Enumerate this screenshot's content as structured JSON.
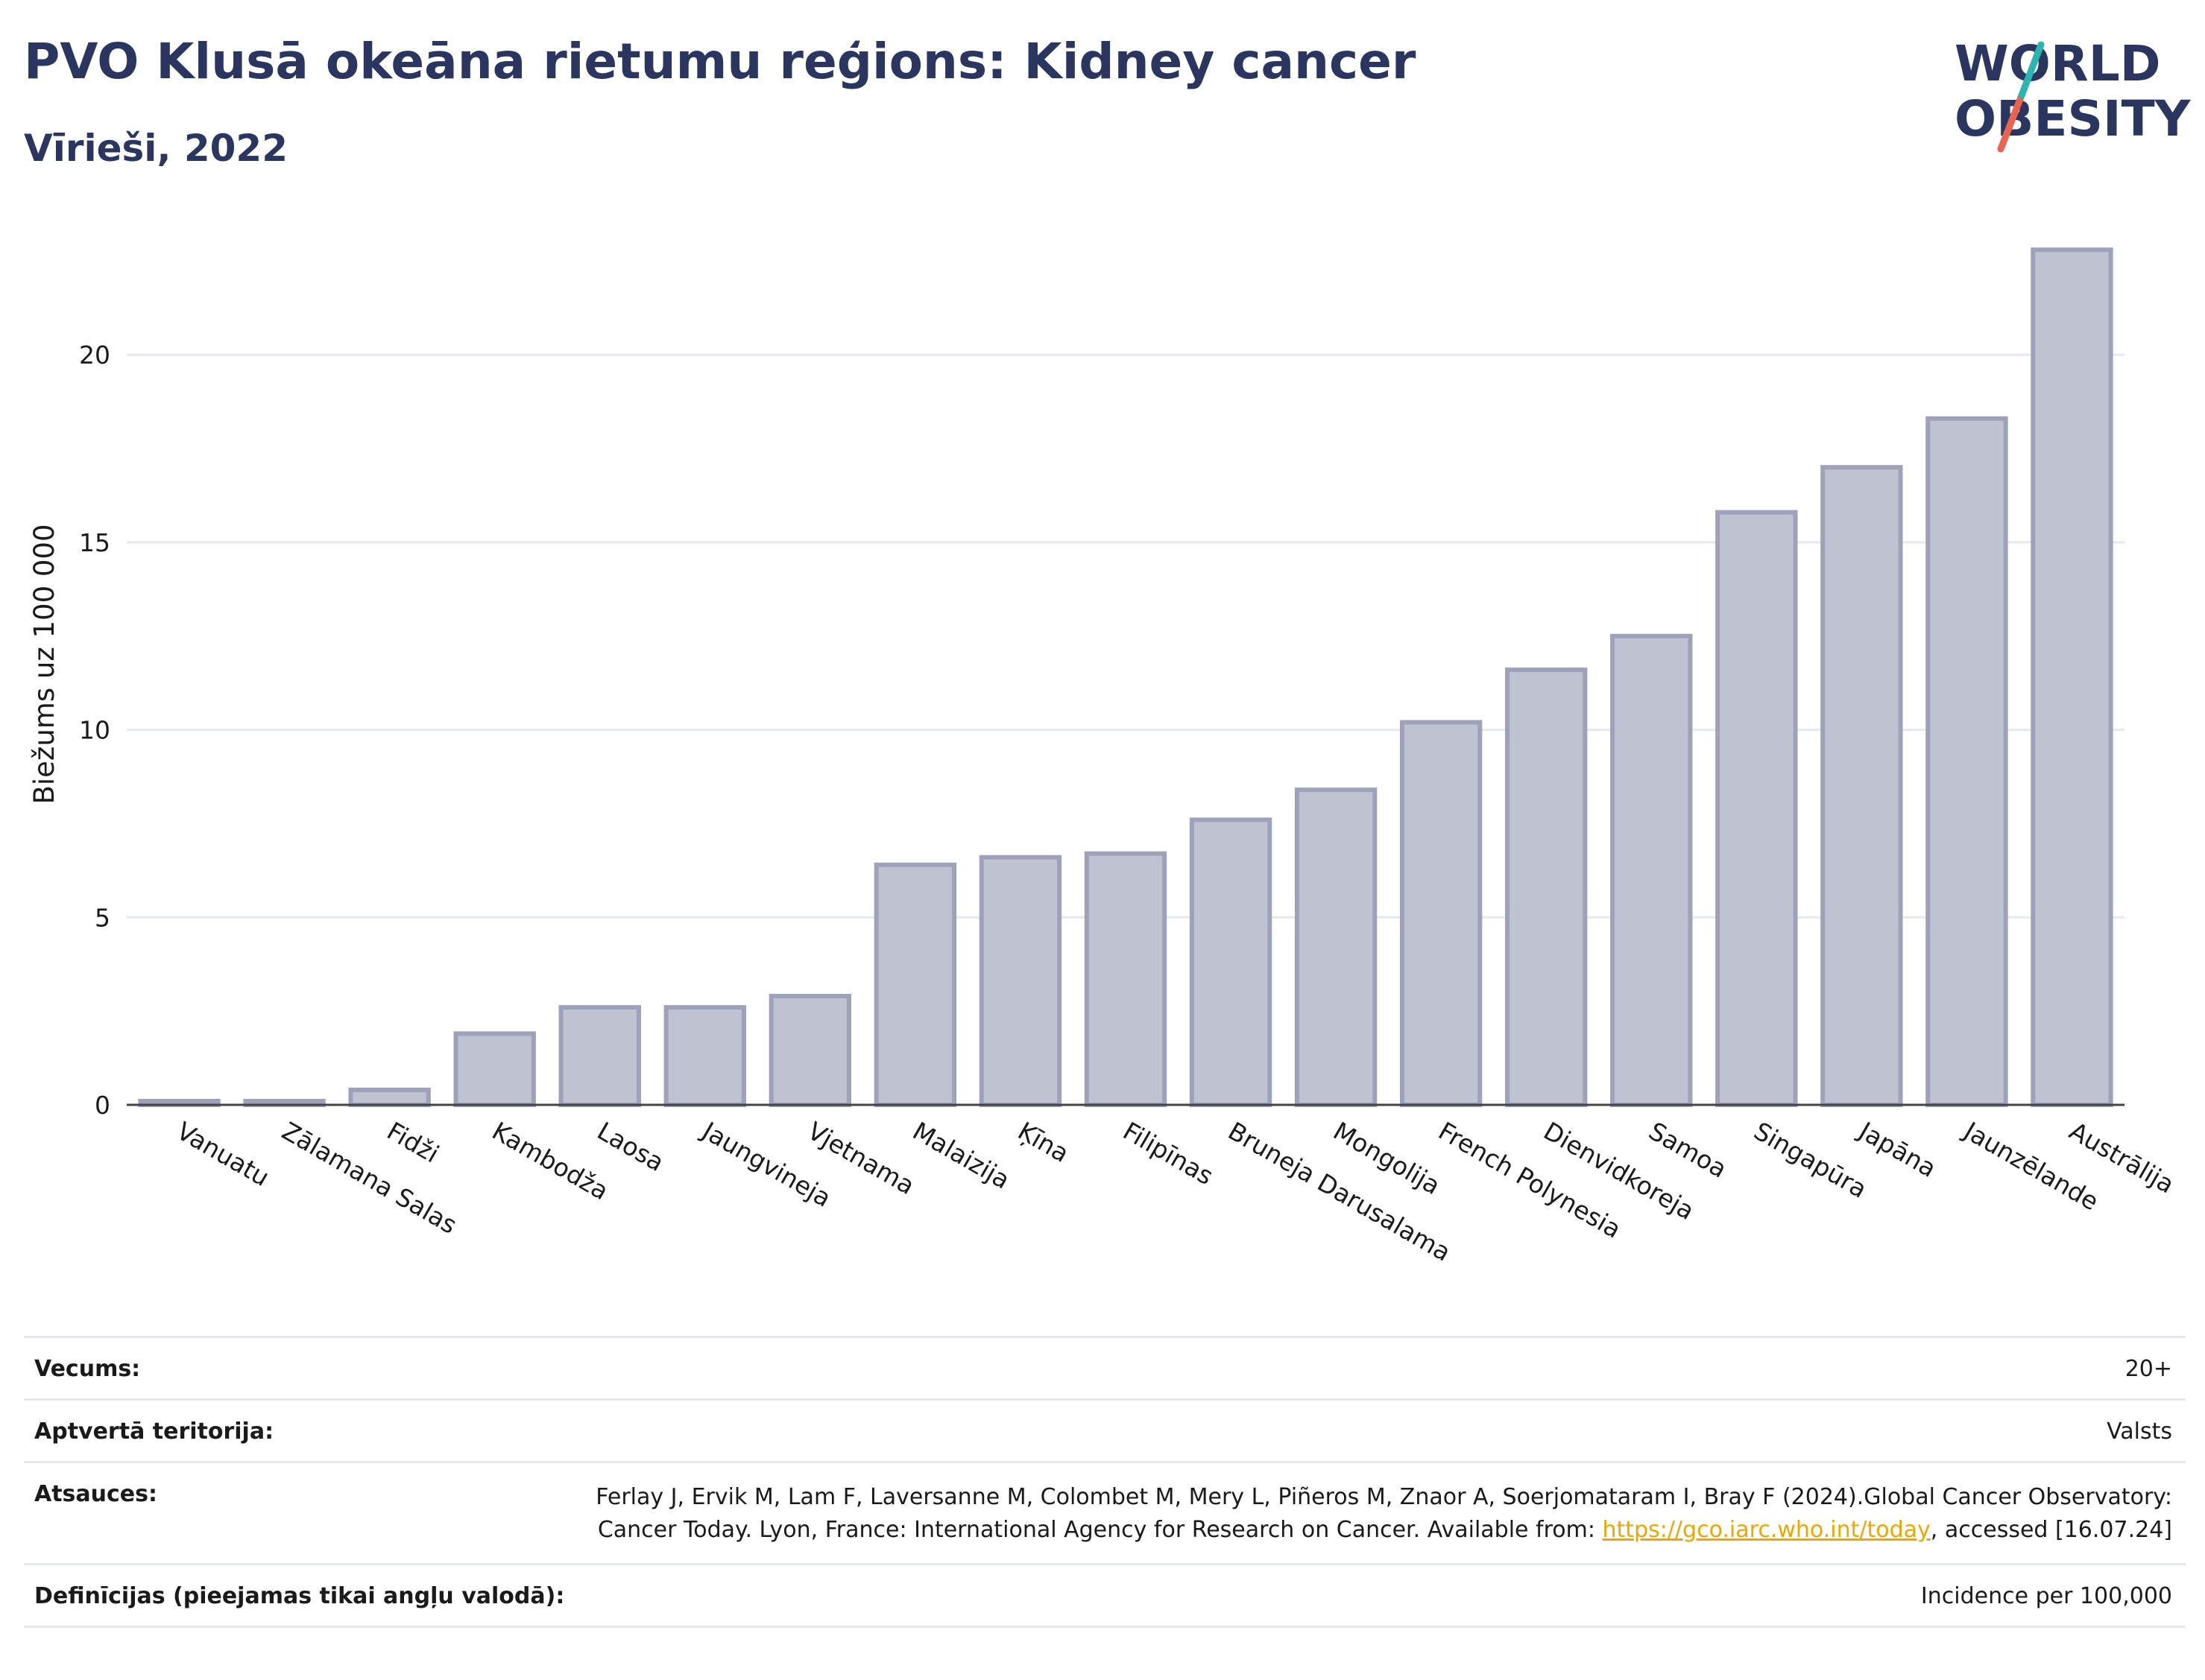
{
  "title": "PVO Klusā okeāna rietumu reģions: Kidney cancer",
  "subtitle": "Vīrieši, 2022",
  "logo": {
    "line1": "WORLD",
    "line2": "OBESITY"
  },
  "colors": {
    "title": "#2b3660",
    "bar_fill": "#bfc2d0",
    "bar_stroke": "#9da2ba",
    "accent_teal": "#2bb5b0",
    "accent_red": "#e8644f",
    "link": "#f0a500"
  },
  "chart_data": {
    "type": "bar",
    "categories": [
      "Vanuatu",
      "Zālamana Salas",
      "Fidži",
      "Kambodža",
      "Laosa",
      "Jaungvineja",
      "Vjetnama",
      "Malaizija",
      "Ķīna",
      "Filipīnas",
      "Bruneja Darusalama",
      "Mongolija",
      "French Polynesia",
      "Dienvidkoreja",
      "Samoa",
      "Singapūra",
      "Japāna",
      "Jaunzēlande",
      "Austrālija"
    ],
    "values": [
      0.1,
      0.1,
      0.4,
      1.9,
      2.6,
      2.6,
      2.9,
      6.4,
      6.6,
      6.7,
      7.6,
      8.4,
      10.2,
      11.6,
      12.5,
      15.8,
      17.0,
      18.3,
      22.8
    ],
    "ylabel": "Biežums uz 100 000",
    "xlabel": "",
    "ylim": [
      0,
      23.5
    ],
    "yticks": [
      0,
      5,
      10,
      15,
      20
    ],
    "grid": true
  },
  "info": {
    "age_label": "Vecums:",
    "age_value": "20+",
    "coverage_label": "Aptvertā teritorija:",
    "coverage_value": "Valsts",
    "refs_label": "Atsauces:",
    "refs_text_1": "Ferlay J, Ervik M, Lam F, Laversanne M, Colombet M, Mery L, Piñeros M, Znaor A, Soerjomataram I, Bray F (2024).Global Cancer Observatory: Cancer Today. Lyon, France: International Agency for Research on Cancer. Available from: ",
    "refs_link": "https://gco.iarc.who.int/today",
    "refs_text_2": ", accessed [16.07.24]",
    "defs_label": "Definīcijas (pieejamas tikai angļu valodā):",
    "defs_value": "Incidence per 100,000"
  }
}
